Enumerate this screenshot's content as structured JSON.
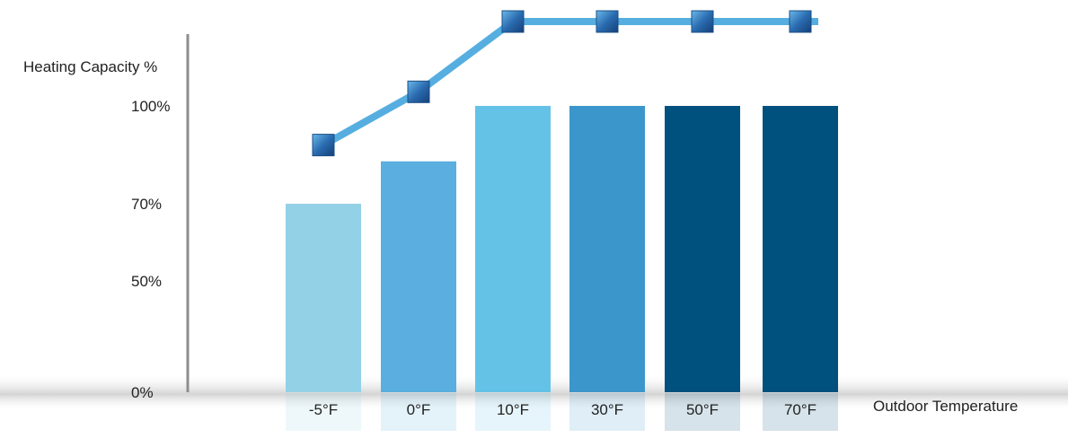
{
  "chart_data": {
    "type": "bar",
    "title": "",
    "ylabel": "Heating Capacity %",
    "xlabel": "Outdoor Temperature",
    "categories": [
      "-5°F",
      "0°F",
      "10°F",
      "30°F",
      "50°F",
      "70°F"
    ],
    "series": [
      {
        "type": "bar",
        "values": [
          70,
          83,
          100,
          100,
          100,
          100
        ]
      },
      {
        "type": "line",
        "markers": "square",
        "values": [
          88,
          105,
          130,
          130,
          130,
          130
        ]
      }
    ],
    "y_ticks": [
      {
        "value": 0,
        "label": "0%"
      },
      {
        "value": 50,
        "label": "50%"
      },
      {
        "value": 70,
        "label": "70%"
      },
      {
        "value": 100,
        "label": "100%"
      }
    ],
    "ylim": [
      0,
      130
    ],
    "legend": "none",
    "grid": false
  },
  "colors": {
    "bars": [
      "#93d1e6",
      "#5aaee0",
      "#64c2e6",
      "#3b97cb",
      "#01517f",
      "#01517f"
    ],
    "line": "#56aee0",
    "marker": "#1e5c98",
    "axis": "#8e8e8e"
  }
}
